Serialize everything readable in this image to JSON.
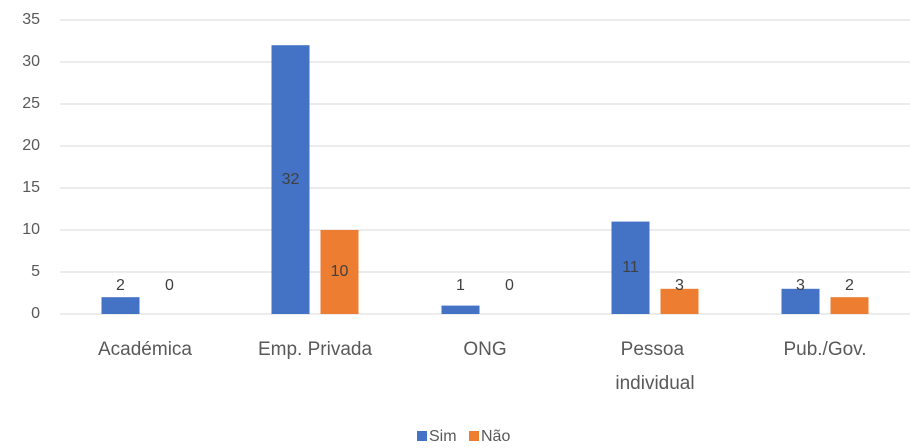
{
  "chart_data": {
    "type": "bar",
    "categories": [
      "Académica",
      "Emp. Privada",
      "ONG",
      "Pessoa individual",
      "Pub./Gov."
    ],
    "series": [
      {
        "name": "Sim",
        "color": "#4472c4",
        "values": [
          2,
          32,
          1,
          11,
          3
        ]
      },
      {
        "name": "Não",
        "color": "#ed7d31",
        "values": [
          0,
          10,
          0,
          3,
          2
        ]
      }
    ],
    "ylim": [
      0,
      35
    ],
    "yticks": [
      0,
      5,
      10,
      15,
      20,
      25,
      30,
      35
    ],
    "grid": true,
    "legend": "bottom"
  }
}
